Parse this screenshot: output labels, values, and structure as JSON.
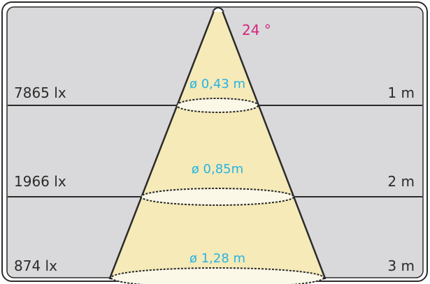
{
  "diagram": {
    "beam_angle": "24 °",
    "levels": [
      {
        "illuminance": "7865 lx",
        "distance": "1 m",
        "diameter": "ø 0,43 m"
      },
      {
        "illuminance": "1966 lx",
        "distance": "2 m",
        "diameter": "ø 0,85m"
      },
      {
        "illuminance": "874 lx",
        "distance": "3 m",
        "diameter": "ø 1,28 m"
      }
    ]
  },
  "colors": {
    "panel": "#d9d9db",
    "beam": "#f5eab8",
    "beam_ellipse": "#fbf8e8",
    "diameter_text": "#27b3e3",
    "angle_text": "#d2267e",
    "line": "#2b2b2b"
  }
}
